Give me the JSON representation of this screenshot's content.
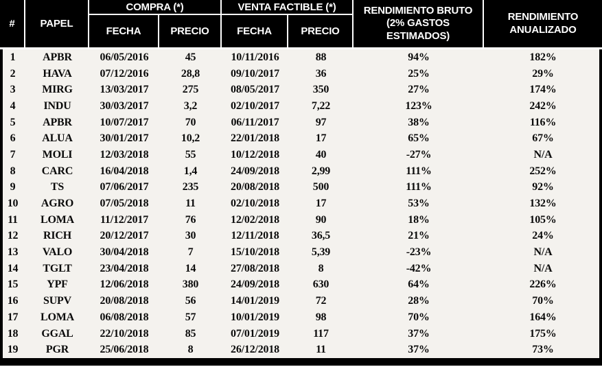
{
  "colors": {
    "header_bg": "#000000",
    "header_text": "#ffffff",
    "body_bg": "#f4f2ee",
    "body_text": "#0a0a0a",
    "border": "#000000"
  },
  "header": {
    "num": "#",
    "papel": "PAPEL",
    "compra_group": "COMPRA (*)",
    "venta_group": "VENTA FACTIBLE (*)",
    "compra_fecha": "FECHA",
    "compra_precio": "PRECIO",
    "venta_fecha": "FECHA",
    "venta_precio": "PRECIO",
    "rend_bruto_line1": "RENDIMIENTO BRUTO",
    "rend_bruto_line2": "(2% GASTOS",
    "rend_bruto_line3": "ESTIMADOS)",
    "rend_anual_line1": "RENDIMIENTO",
    "rend_anual_line2": "ANUALIZADO"
  },
  "chart_data": {
    "type": "table",
    "title": "",
    "column_groups": [
      {
        "label": "COMPRA (*)",
        "columns": [
          "FECHA",
          "PRECIO"
        ]
      },
      {
        "label": "VENTA FACTIBLE (*)",
        "columns": [
          "FECHA",
          "PRECIO"
        ]
      }
    ],
    "columns": [
      "#",
      "PAPEL",
      "COMPRA FECHA",
      "COMPRA PRECIO",
      "VENTA FECHA",
      "VENTA PRECIO",
      "RENDIMIENTO BRUTO (2% GASTOS ESTIMADOS)",
      "RENDIMIENTO ANUALIZADO"
    ],
    "rows": [
      [
        "1",
        "APBR",
        "06/05/2016",
        "45",
        "10/11/2016",
        "88",
        "94%",
        "182%"
      ],
      [
        "2",
        "HAVA",
        "07/12/2016",
        "28,8",
        "09/10/2017",
        "36",
        "25%",
        "29%"
      ],
      [
        "3",
        "MIRG",
        "13/03/2017",
        "275",
        "08/05/2017",
        "350",
        "27%",
        "174%"
      ],
      [
        "4",
        "INDU",
        "30/03/2017",
        "3,2",
        "02/10/2017",
        "7,22",
        "123%",
        "242%"
      ],
      [
        "5",
        "APBR",
        "10/07/2017",
        "70",
        "06/11/2017",
        "97",
        "38%",
        "116%"
      ],
      [
        "6",
        "ALUA",
        "30/01/2017",
        "10,2",
        "22/01/2018",
        "17",
        "65%",
        "67%"
      ],
      [
        "7",
        "MOLI",
        "12/03/2018",
        "55",
        "10/12/2018",
        "40",
        "-27%",
        "N/A"
      ],
      [
        "8",
        "CARC",
        "16/04/2018",
        "1,4",
        "24/09/2018",
        "2,99",
        "111%",
        "252%"
      ],
      [
        "9",
        "TS",
        "07/06/2017",
        "235",
        "20/08/2018",
        "500",
        "111%",
        "92%"
      ],
      [
        "10",
        "AGRO",
        "07/05/2018",
        "11",
        "02/10/2018",
        "17",
        "53%",
        "132%"
      ],
      [
        "11",
        "LOMA",
        "11/12/2017",
        "76",
        "12/02/2018",
        "90",
        "18%",
        "105%"
      ],
      [
        "12",
        "RICH",
        "20/12/2017",
        "30",
        "12/11/2018",
        "36,5",
        "21%",
        "24%"
      ],
      [
        "13",
        "VALO",
        "30/04/2018",
        "7",
        "15/10/2018",
        "5,39",
        "-23%",
        "N/A"
      ],
      [
        "14",
        "TGLT",
        "23/04/2018",
        "14",
        "27/08/2018",
        "8",
        "-42%",
        "N/A"
      ],
      [
        "15",
        "YPF",
        "12/06/2018",
        "380",
        "24/09/2018",
        "630",
        "64%",
        "226%"
      ],
      [
        "16",
        "SUPV",
        "20/08/2018",
        "56",
        "14/01/2019",
        "72",
        "28%",
        "70%"
      ],
      [
        "17",
        "LOMA",
        "06/08/2018",
        "57",
        "10/01/2019",
        "98",
        "70%",
        "164%"
      ],
      [
        "18",
        "GGAL",
        "22/10/2018",
        "85",
        "07/01/2019",
        "117",
        "37%",
        "175%"
      ],
      [
        "19",
        "PGR",
        "25/06/2018",
        "8",
        "26/12/2018",
        "11",
        "37%",
        "73%"
      ]
    ]
  }
}
